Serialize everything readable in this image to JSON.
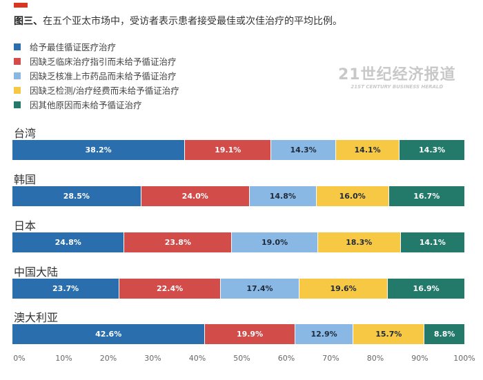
{
  "title_prefix": "图三、",
  "title": "在五个亚太市场中，受访者表示患者接受最佳或次佳治疗的平均比例。",
  "watermark": {
    "line1": "21世纪经济报道",
    "line2": "21ST CENTURY BUSINESS HERALD"
  },
  "chart_data": {
    "type": "bar",
    "orientation": "horizontal",
    "stacked": true,
    "categories": [
      "台湾",
      "韩国",
      "日本",
      "中国大陆",
      "澳大利亚"
    ],
    "series": [
      {
        "name": "给予最佳循证医疗治疗",
        "color": "#2a6ead",
        "label_color": "#ffffff",
        "values": [
          38.2,
          28.5,
          24.8,
          23.7,
          42.6
        ],
        "labels": [
          "38.2%",
          "28.5%",
          "24.8%",
          "23.7%",
          "42.6%"
        ]
      },
      {
        "name": "因缺乏临床治疗指引而未给予循证治疗",
        "color": "#d24c4a",
        "label_color": "#ffffff",
        "values": [
          19.1,
          24.0,
          23.8,
          22.4,
          19.9
        ],
        "labels": [
          "19.1%",
          "24.0%",
          "23.8%",
          "22.4%",
          "19.9%"
        ]
      },
      {
        "name": "因缺乏核准上市药品而未给予循证治疗",
        "color": "#8ab8e4",
        "label_color": "#1e2a3a",
        "values": [
          14.3,
          14.8,
          19.0,
          17.4,
          12.9
        ],
        "labels": [
          "14.3%",
          "14.8%",
          "19.0%",
          "17.4%",
          "12.9%"
        ]
      },
      {
        "name": "因缺乏检测/治疗经费而未给予循证治疗",
        "color": "#f7c843",
        "label_color": "#1e2a3a",
        "values": [
          14.1,
          16.0,
          18.3,
          19.6,
          15.7
        ],
        "labels": [
          "14.1%",
          "16.0%",
          "18.3%",
          "19.6%",
          "15.7%"
        ]
      },
      {
        "name": "因其他原因而未给予循证治疗",
        "color": "#237a6a",
        "label_color": "#ffffff",
        "values": [
          14.3,
          16.7,
          14.1,
          16.9,
          8.8
        ],
        "labels": [
          "14.3%",
          "16.7%",
          "14.1%",
          "16.9%",
          "8.8%"
        ]
      }
    ],
    "xlim": [
      0,
      100
    ],
    "xticks": [
      "0%",
      "10%",
      "20%",
      "30%",
      "40%",
      "50%",
      "60%",
      "70%",
      "80%",
      "90%",
      "100%"
    ],
    "grid": false,
    "legend_position": "top-left"
  }
}
